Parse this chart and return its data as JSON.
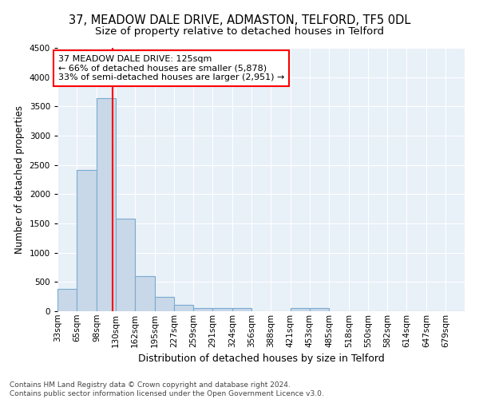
{
  "title": "37, MEADOW DALE DRIVE, ADMASTON, TELFORD, TF5 0DL",
  "subtitle": "Size of property relative to detached houses in Telford",
  "xlabel": "Distribution of detached houses by size in Telford",
  "ylabel": "Number of detached properties",
  "bin_labels": [
    "33sqm",
    "65sqm",
    "98sqm",
    "130sqm",
    "162sqm",
    "195sqm",
    "227sqm",
    "259sqm",
    "291sqm",
    "324sqm",
    "356sqm",
    "388sqm",
    "421sqm",
    "453sqm",
    "485sqm",
    "518sqm",
    "550sqm",
    "582sqm",
    "614sqm",
    "647sqm",
    "679sqm"
  ],
  "bin_values": [
    380,
    2420,
    3640,
    1580,
    600,
    240,
    105,
    60,
    50,
    50,
    0,
    0,
    60,
    50,
    0,
    0,
    0,
    0,
    0,
    0,
    0
  ],
  "bin_edges": [
    33,
    65,
    98,
    130,
    162,
    195,
    227,
    259,
    291,
    324,
    356,
    388,
    421,
    453,
    485,
    518,
    550,
    582,
    614,
    647,
    679,
    711
  ],
  "bar_color": "#c8d8e8",
  "bar_edge_color": "#7aaad0",
  "property_size": 125,
  "vline_color": "red",
  "annotation_text": "37 MEADOW DALE DRIVE: 125sqm\n← 66% of detached houses are smaller (5,878)\n33% of semi-detached houses are larger (2,951) →",
  "annotation_box_color": "white",
  "annotation_box_edge": "red",
  "ylim": [
    0,
    4500
  ],
  "yticks": [
    0,
    500,
    1000,
    1500,
    2000,
    2500,
    3000,
    3500,
    4000,
    4500
  ],
  "background_color": "#e8f0f8",
  "footer_text": "Contains HM Land Registry data © Crown copyright and database right 2024.\nContains public sector information licensed under the Open Government Licence v3.0.",
  "title_fontsize": 10.5,
  "subtitle_fontsize": 9.5,
  "ylabel_fontsize": 8.5,
  "xlabel_fontsize": 9,
  "tick_fontsize": 7.5,
  "footer_fontsize": 6.5,
  "annotation_fontsize": 8
}
